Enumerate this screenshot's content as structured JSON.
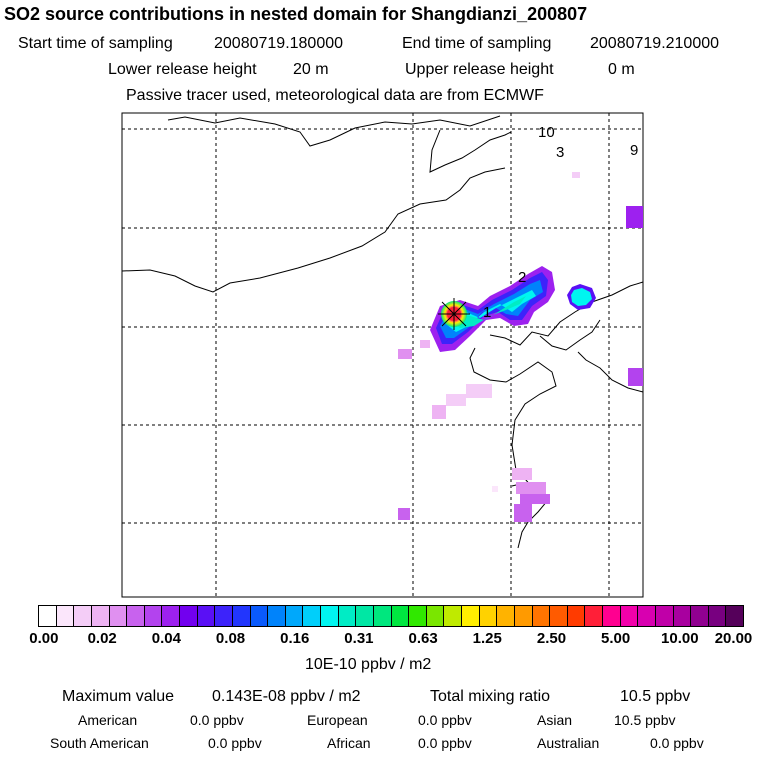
{
  "header": {
    "title": "SO2 source contributions in nested domain for Shangdianzi_200807",
    "start_label": "Start time of sampling",
    "start_value": "20080719.180000",
    "end_label": "End time of sampling",
    "end_value": "20080719.210000",
    "lower_label": "Lower release height",
    "lower_value": "20 m",
    "upper_label": "Upper release height",
    "upper_value": "0 m",
    "tracer_note": "Passive tracer used, meteorological data are from ECMWF"
  },
  "map": {
    "markers": [
      "1",
      "2",
      "3",
      "9",
      "10"
    ]
  },
  "legend": {
    "ticks": [
      "0.00",
      "0.02",
      "0.04",
      "0.08",
      "0.16",
      "0.31",
      "0.63",
      "1.25",
      "2.50",
      "5.00",
      "10.00",
      "20.00"
    ],
    "unit": "10E-10 ppbv / m2",
    "colors": [
      "#ffffff",
      "#fbe6fb",
      "#f4cdf7",
      "#eeb3f3",
      "#e090f0",
      "#c862ee",
      "#b343ee",
      "#9d21ef",
      "#7200ef",
      "#5a10f5",
      "#3d23fa",
      "#2236fd",
      "#0a5afc",
      "#0083fb",
      "#00a8fb",
      "#00cffa",
      "#00f5f0",
      "#00ecc5",
      "#00e7a4",
      "#00e77e",
      "#00e640",
      "#30e800",
      "#7ae600",
      "#bfea00",
      "#ffee00",
      "#ffd200",
      "#ffb300",
      "#ff9a00",
      "#ff7400",
      "#ff5b00",
      "#ff3b00",
      "#ff1f38",
      "#ff0090",
      "#f200aa",
      "#d800b0",
      "#c000a8",
      "#a8009f",
      "#900090",
      "#780080",
      "#55005a"
    ]
  },
  "stats": {
    "max_label": "Maximum value",
    "max_value": "0.143E-08 ppbv / m2",
    "total_label": "Total mixing ratio",
    "total_value": "10.5 ppbv",
    "regions": [
      {
        "name": "American",
        "value": "0.0 ppbv"
      },
      {
        "name": "European",
        "value": "0.0 ppbv"
      },
      {
        "name": "Asian",
        "value": "10.5 ppbv"
      },
      {
        "name": "South American",
        "value": "0.0 ppbv"
      },
      {
        "name": "African",
        "value": "0.0 ppbv"
      },
      {
        "name": "Australian",
        "value": "0.0 ppbv"
      }
    ]
  }
}
